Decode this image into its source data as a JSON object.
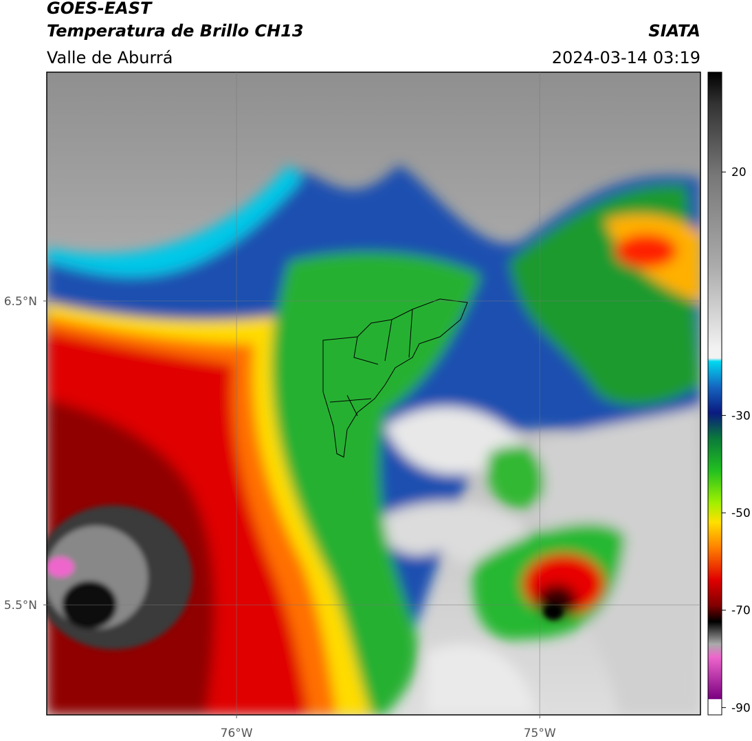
{
  "header": {
    "title": "GOES-EAST",
    "subtitle": "Temperatura de Brillo CH13",
    "source": "SIATA",
    "region": "Valle de Aburrá",
    "datetime": "2024-03-14 03:19"
  },
  "map": {
    "xlim": [
      -76.626,
      -74.47
    ],
    "ylim": [
      5.138,
      7.253
    ],
    "xticks": [
      {
        "value": -76,
        "label": "76°W"
      },
      {
        "value": -75,
        "label": "75°W"
      }
    ],
    "yticks": [
      {
        "value": 5.5,
        "label": "5.5°N"
      },
      {
        "value": 6.5,
        "label": "6.5°N"
      }
    ],
    "grid": true
  },
  "colorbar": {
    "clim": [
      -91.5,
      40.5
    ],
    "ticks": [
      -90,
      -70,
      -50,
      -30,
      20
    ]
  }
}
